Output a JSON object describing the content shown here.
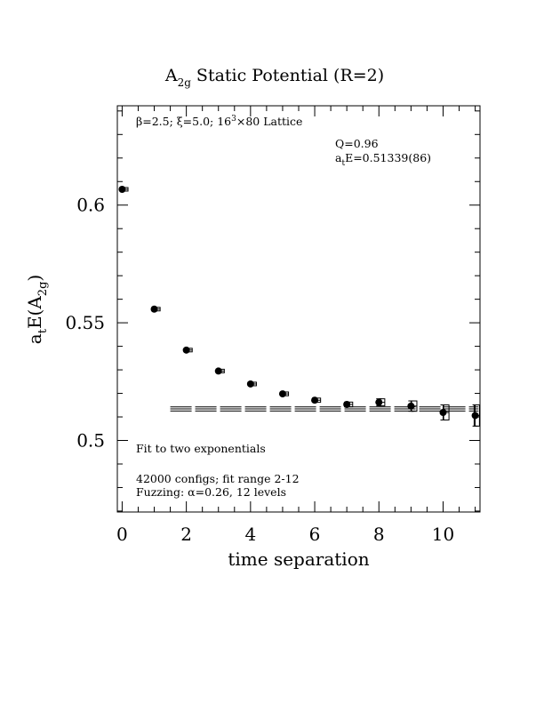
{
  "chart_data": {
    "type": "scatter",
    "title_main": "A",
    "title_sub": "2g",
    "title_rest": " Static Potential (R=2)",
    "xlabel": "time separation",
    "ylabel_parts": {
      "a": "a",
      "t": "t",
      "E": "E(A",
      "sub": "2g",
      "close": ")"
    },
    "xlim": [
      -0.15,
      11.15
    ],
    "ylim": [
      0.4696,
      0.6422
    ],
    "xticks": [
      0,
      2,
      4,
      6,
      8,
      10
    ],
    "xtick_labels": [
      "0",
      "2",
      "4",
      "6",
      "8",
      "10"
    ],
    "yticks": [
      0.5,
      0.55,
      0.6
    ],
    "ytick_labels": [
      "0.5",
      "0.55",
      "0.6"
    ],
    "annotations": {
      "lattice": {
        "beta": "β",
        "text1": "=2.5; ",
        "xi": "ξ",
        "text2": "=5.0; 16",
        "sup": "3",
        "text3": "×80 Lattice"
      },
      "q": "Q=0.96",
      "ae": {
        "a": "a",
        "t": "t",
        "rest": "E=0.51339(86)"
      },
      "fit": "Fit to two exponentials",
      "configs": "42000 configs; fit range 2-12",
      "fuzz": {
        "text1": "Fuzzing: ",
        "alpha": "α",
        "text2": "=0.26, 12 levels"
      }
    },
    "fit": {
      "value": 0.51339,
      "error": 0.00086,
      "x_start": 1.5,
      "x_end": 11.1
    },
    "series": [
      {
        "marker": "filled-circle",
        "x": [
          0,
          1,
          2,
          3,
          4,
          5,
          6,
          7,
          8,
          9,
          10,
          11
        ],
        "y": [
          0.6067,
          0.5558,
          0.5384,
          0.5295,
          0.524,
          0.5198,
          0.5171,
          0.5153,
          0.5162,
          0.5146,
          0.5119,
          0.5106
        ],
        "err": [
          0.0004,
          0.0005,
          0.0006,
          0.0006,
          0.0007,
          0.0008,
          0.0009,
          0.001,
          0.0015,
          0.0022,
          0.0032,
          0.0045
        ]
      },
      {
        "marker": "open-square",
        "x": [
          0.1,
          1.1,
          2.1,
          3.1,
          4.1,
          5.1,
          6.1,
          7.1,
          8.1,
          9.1,
          10.1,
          11.05
        ],
        "y": [
          0.6067,
          0.5558,
          0.5384,
          0.5295,
          0.524,
          0.5198,
          0.5171,
          0.5153,
          0.5162,
          0.5146,
          0.5119,
          0.5106
        ],
        "err": [
          0.0004,
          0.0005,
          0.0006,
          0.0006,
          0.0007,
          0.0008,
          0.0009,
          0.001,
          0.0015,
          0.0022,
          0.0032,
          0.0045
        ]
      }
    ]
  }
}
